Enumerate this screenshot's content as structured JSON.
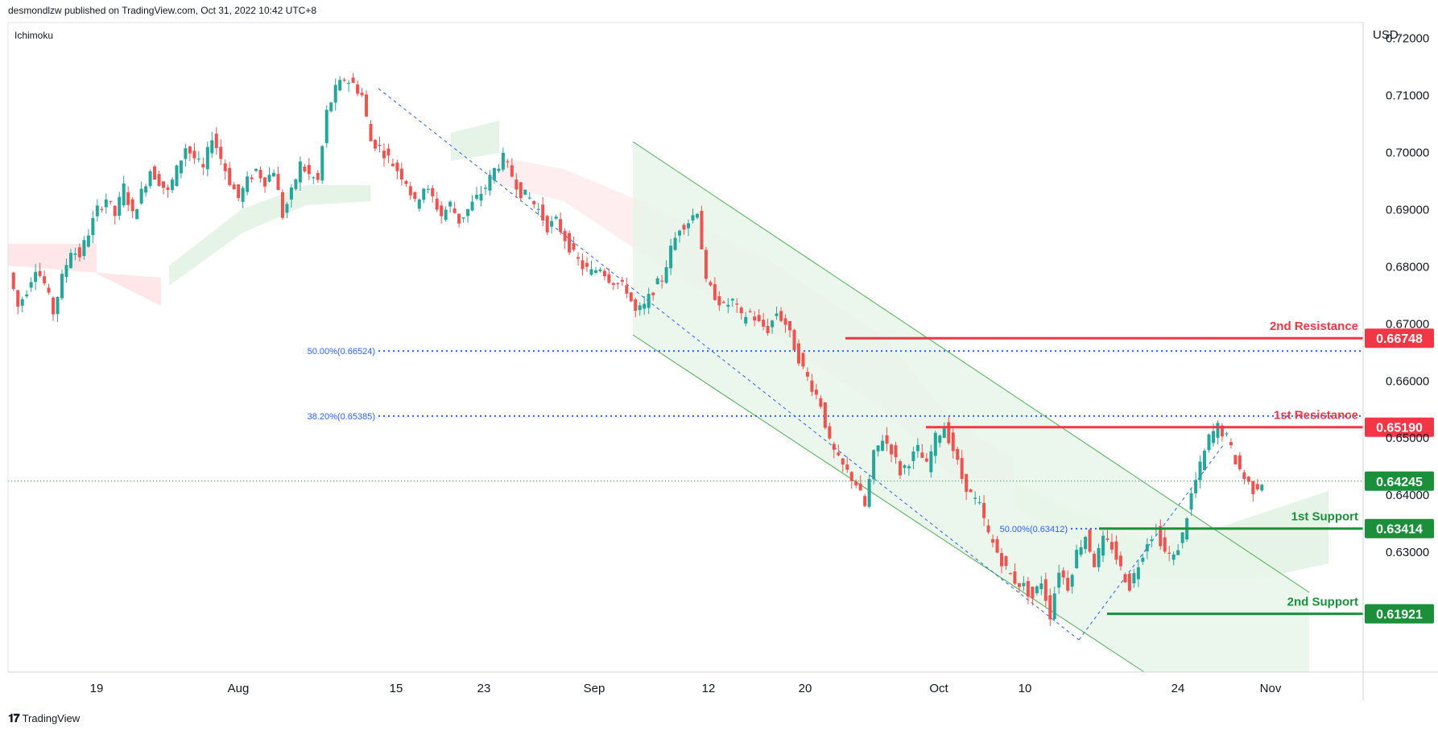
{
  "header": {
    "publisher_line": "desmondlzw published on TradingView.com, Oct 31, 2022 10:42 UTC+8"
  },
  "indicator_label": "Ichimoku",
  "footer": {
    "brand": "TradingView"
  },
  "colors": {
    "resistance": "#f23645",
    "support": "#1b8f3a",
    "current_price": "#1b8f3a",
    "fib": "#2962ff",
    "channel_fill": "#e8f5e9",
    "channel_line": "#4caf50",
    "candle_up": "#26a69a",
    "candle_down": "#ef5350",
    "cloud_bull": "#c8e6c9",
    "cloud_bear": "#ffcdd2"
  },
  "chart_data": {
    "type": "candlestick",
    "symbol_currency": "USD",
    "y_axis": {
      "label": "USD",
      "ticks": [
        "0.72000",
        "0.71000",
        "0.70000",
        "0.69000",
        "0.68000",
        "0.67000",
        "0.66000",
        "0.65000",
        "0.64000",
        "0.63000"
      ],
      "ylim": [
        0.609,
        0.7225
      ]
    },
    "x_axis": {
      "ticks": [
        "19",
        "Aug",
        "15",
        "23",
        "Sep",
        "12",
        "20",
        "Oct",
        "10",
        "24",
        "Nov"
      ]
    },
    "levels": [
      {
        "label": "2nd Resistance",
        "value": 0.66748,
        "value_text": "0.66748",
        "kind": "resistance"
      },
      {
        "label": "1st Resistance",
        "value": 0.6519,
        "value_text": "0.65190",
        "kind": "resistance"
      },
      {
        "label": "1st Support",
        "value": 0.63414,
        "value_text": "0.63414",
        "kind": "support"
      },
      {
        "label": "2nd Support",
        "value": 0.61921,
        "value_text": "0.61921",
        "kind": "support"
      }
    ],
    "current_price": {
      "value": 0.64245,
      "value_text": "0.64245"
    },
    "fib_levels": [
      {
        "label": "50.00%(0.66524)",
        "value": 0.66524
      },
      {
        "label": "38.20%(0.65385)",
        "value": 0.65385
      },
      {
        "label": "50.00%(0.63412)",
        "value": 0.63412
      }
    ],
    "price_path": [
      0.679,
      0.673,
      0.676,
      0.68,
      0.677,
      0.672,
      0.678,
      0.683,
      0.682,
      0.686,
      0.69,
      0.692,
      0.689,
      0.694,
      0.689,
      0.693,
      0.697,
      0.695,
      0.693,
      0.697,
      0.701,
      0.699,
      0.697,
      0.703,
      0.699,
      0.695,
      0.692,
      0.695,
      0.697,
      0.695,
      0.697,
      0.689,
      0.693,
      0.698,
      0.696,
      0.695,
      0.707,
      0.711,
      0.713,
      0.712,
      0.71,
      0.702,
      0.701,
      0.699,
      0.697,
      0.695,
      0.691,
      0.694,
      0.692,
      0.689,
      0.691,
      0.688,
      0.69,
      0.692,
      0.694,
      0.697,
      0.699,
      0.696,
      0.693,
      0.692,
      0.69,
      0.687,
      0.688,
      0.685,
      0.682,
      0.68,
      0.679,
      0.68,
      0.678,
      0.677,
      0.676,
      0.672,
      0.673,
      0.676,
      0.678,
      0.683,
      0.687,
      0.688,
      0.69,
      0.677,
      0.675,
      0.673,
      0.674,
      0.671,
      0.672,
      0.67,
      0.669,
      0.672,
      0.67,
      0.666,
      0.662,
      0.659,
      0.656,
      0.649,
      0.646,
      0.644,
      0.642,
      0.638,
      0.647,
      0.65,
      0.648,
      0.644,
      0.646,
      0.648,
      0.645,
      0.65,
      0.652,
      0.648,
      0.643,
      0.64,
      0.638,
      0.633,
      0.63,
      0.627,
      0.625,
      0.624,
      0.622,
      0.625,
      0.619,
      0.627,
      0.624,
      0.63,
      0.633,
      0.628,
      0.632,
      0.631,
      0.627,
      0.624,
      0.628,
      0.632,
      0.634,
      0.63,
      0.629,
      0.633,
      0.64,
      0.645,
      0.65,
      0.652,
      0.65,
      0.646,
      0.643,
      0.641,
      0.6424
    ]
  }
}
